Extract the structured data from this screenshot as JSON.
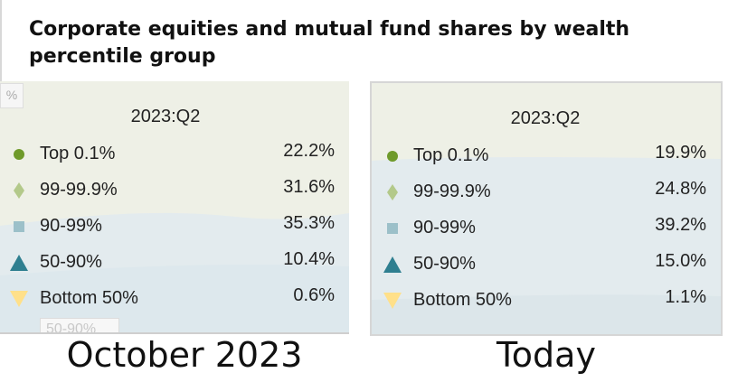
{
  "title": "Corporate equities and mutual fund shares by wealth percentile group",
  "left": {
    "corner_tag": "%",
    "quarter": "2023:Q2",
    "ghost_text": "50-90%",
    "rows": [
      {
        "label": "Top 0.1%",
        "value": "22.2%"
      },
      {
        "label": "99-99.9%",
        "value": "31.6%"
      },
      {
        "label": "90-99%",
        "value": "35.3%"
      },
      {
        "label": "50-90%",
        "value": "10.4%"
      },
      {
        "label": "Bottom 50%",
        "value": "0.6%"
      }
    ],
    "caption": "October 2023"
  },
  "right": {
    "quarter": "2023:Q2",
    "rows": [
      {
        "label": "Top 0.1%",
        "value": "19.9%"
      },
      {
        "label": "99-99.9%",
        "value": "24.8%"
      },
      {
        "label": "90-99%",
        "value": "39.2%"
      },
      {
        "label": "50-90%",
        "value": "15.0%"
      },
      {
        "label": "Bottom 50%",
        "value": "1.1%"
      }
    ],
    "caption": "Today"
  },
  "markers": [
    {
      "icon": "circle-icon",
      "color": "#6f9a2a"
    },
    {
      "icon": "diamond-icon",
      "color": "#b3c98a"
    },
    {
      "icon": "square-icon",
      "color": "#9cc0c9"
    },
    {
      "icon": "triangle-up-icon",
      "color": "#2f7f90"
    },
    {
      "icon": "triangle-down-icon",
      "color": "#ffe08a"
    }
  ]
}
